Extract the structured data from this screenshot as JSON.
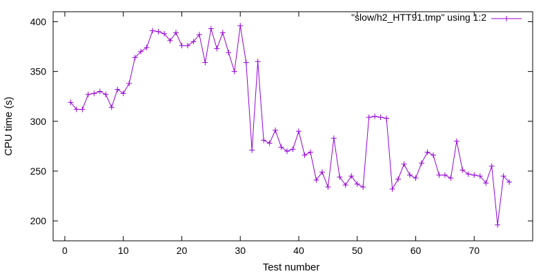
{
  "chart_data": {
    "type": "line",
    "title": "",
    "xlabel": "Test number",
    "ylabel": "CPU time (s)",
    "xlim": [
      -2,
      80
    ],
    "ylim": [
      180,
      410
    ],
    "xticks": [
      0,
      10,
      20,
      30,
      40,
      50,
      60,
      70
    ],
    "yticks": [
      200,
      250,
      300,
      350,
      400
    ],
    "grid": false,
    "legend_position": "top-right",
    "series": [
      {
        "name": "\"slow/h2_HTT91.tmp\" using 1:2",
        "color": "#9400d3",
        "marker": "plus",
        "x": [
          1,
          2,
          3,
          4,
          5,
          6,
          7,
          8,
          9,
          10,
          11,
          12,
          13,
          14,
          15,
          16,
          17,
          18,
          19,
          20,
          21,
          22,
          23,
          24,
          25,
          26,
          27,
          28,
          29,
          30,
          31,
          32,
          33,
          34,
          35,
          36,
          37,
          38,
          39,
          40,
          41,
          42,
          43,
          44,
          45,
          46,
          47,
          48,
          49,
          50,
          51,
          52,
          53,
          54,
          55,
          56,
          57,
          58,
          59,
          60,
          61,
          62,
          63,
          64,
          65,
          66,
          67,
          68,
          69,
          70,
          71,
          72,
          73,
          74,
          75,
          76
        ],
        "y": [
          319,
          312,
          312,
          327,
          328,
          330,
          327,
          314,
          332,
          328,
          338,
          364,
          370,
          374,
          391,
          390,
          388,
          381,
          389,
          376,
          376,
          380,
          387,
          359,
          393,
          373,
          389,
          369,
          350,
          396,
          359,
          271,
          360,
          281,
          278,
          291,
          274,
          270,
          272,
          290,
          266,
          269,
          241,
          249,
          234,
          283,
          244,
          236,
          245,
          237,
          234,
          304,
          305,
          304,
          303,
          232,
          242,
          257,
          246,
          243,
          258,
          269,
          266,
          246,
          246,
          243,
          280,
          251,
          247,
          246,
          245,
          238,
          255,
          196,
          245,
          239
        ]
      }
    ]
  }
}
